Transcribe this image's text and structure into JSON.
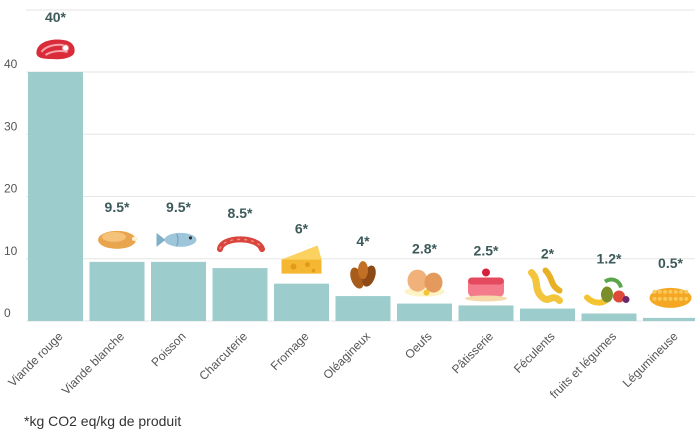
{
  "chart_data": {
    "type": "bar",
    "categories": [
      "Viande rouge",
      "Viande blanche",
      "Poisson",
      "Charcuterie",
      "Fromage",
      "Oléagineux",
      "Oeufs",
      "Pâtisserie",
      "Féculents",
      "fruits et légumes",
      "Légumineuse"
    ],
    "values": [
      40,
      9.5,
      9.5,
      8.5,
      6,
      4,
      2.8,
      2.5,
      2,
      1.2,
      0.5
    ],
    "value_labels": [
      "40*",
      "9.5*",
      "9.5*",
      "8.5*",
      "6*",
      "4*",
      "2.8*",
      "2.5*",
      "2*",
      "1.2*",
      "0.5*"
    ],
    "icons": [
      "steak-icon",
      "chicken-icon",
      "fish-icon",
      "sausage-icon",
      "cheese-icon",
      "nuts-icon",
      "eggs-icon",
      "cake-icon",
      "pasta-icon",
      "fruits-vegetables-icon",
      "lentils-icon"
    ],
    "yticks": [
      "0",
      "10",
      "20",
      "30",
      "40"
    ],
    "ylim": [
      0,
      40
    ],
    "title": "",
    "xlabel": "",
    "ylabel": "",
    "grid": true,
    "bar_color": "#9ccccc"
  },
  "footnote": "*kg CO2 eq/kg de produit"
}
